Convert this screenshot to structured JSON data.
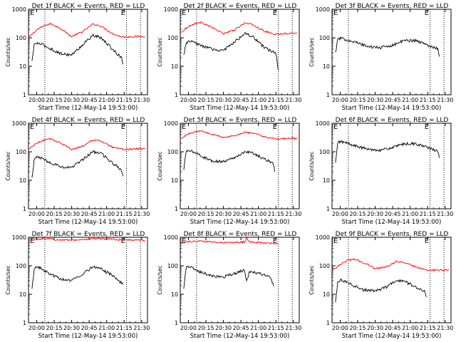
{
  "figure": {
    "time_ticks": [
      "20:00",
      "20:15",
      "20:30",
      "20:45",
      "21:00",
      "21:15",
      "21:30"
    ],
    "y_ticks": [
      "1",
      "10",
      "100",
      "1000"
    ]
  },
  "chart_data": [
    {
      "type": "line",
      "title": "Det 1f BLACK = Events, RED = LLD",
      "xlabel": "Start Time (12-May-14 19:53:00)",
      "ylabel": "Counts/sec",
      "xlim": [
        "19:53",
        "21:35"
      ],
      "ylim": [
        1,
        1000
      ],
      "yscale": "log",
      "markers": {
        "left_label": "E",
        "right_label": "E",
        "dotted_lines": [
          "20:07",
          "21:17",
          "21:29"
        ]
      },
      "series": [
        {
          "color": "#ff0000",
          "x": [
            "19:53",
            "20:00",
            "20:07",
            "20:12",
            "20:20",
            "20:30",
            "20:40",
            "20:48",
            "20:55",
            "21:05",
            "21:12",
            "21:16",
            "21:22",
            "21:33"
          ],
          "values": [
            100,
            190,
            270,
            310,
            220,
            110,
            170,
            300,
            260,
            140,
            110,
            105,
            110,
            112
          ]
        },
        {
          "color": "#000000",
          "x": [
            "19:56",
            "19:58",
            "20:00",
            "20:04",
            "20:10",
            "20:20",
            "20:30",
            "20:40",
            "20:48",
            "20:55",
            "21:05",
            "21:10",
            "21:13",
            "21:14"
          ],
          "values": [
            15,
            60,
            65,
            60,
            45,
            28,
            25,
            60,
            120,
            100,
            40,
            25,
            20,
            12
          ]
        }
      ]
    },
    {
      "type": "line",
      "title": "Det 2f BLACK = Events, RED = LLD",
      "xlabel": "Start Time (12-May-14 19:53:00)",
      "ylabel": "Counts/sec",
      "xlim": [
        "19:53",
        "21:35"
      ],
      "ylim": [
        1,
        1000
      ],
      "yscale": "log",
      "markers": {
        "left_label": "E",
        "right_label": "E",
        "dotted_lines": [
          "20:07",
          "21:17",
          "21:29"
        ]
      },
      "series": [
        {
          "color": "#ff0000",
          "x": [
            "19:53",
            "20:00",
            "20:07",
            "20:12",
            "20:20",
            "20:30",
            "20:40",
            "20:48",
            "20:55",
            "21:05",
            "21:12",
            "21:16",
            "21:22",
            "21:33"
          ],
          "values": [
            150,
            250,
            330,
            340,
            230,
            140,
            190,
            330,
            290,
            170,
            140,
            130,
            140,
            150
          ]
        },
        {
          "color": "#000000",
          "x": [
            "19:56",
            "19:58",
            "20:00",
            "20:04",
            "20:10",
            "20:20",
            "20:30",
            "20:40",
            "20:48",
            "20:55",
            "21:05",
            "21:10",
            "21:15",
            "21:17"
          ],
          "values": [
            25,
            60,
            75,
            70,
            55,
            40,
            35,
            75,
            140,
            110,
            45,
            35,
            30,
            8
          ]
        }
      ]
    },
    {
      "type": "line",
      "title": "Det 3f BLACK = Events, RED = LLD",
      "xlabel": "Start Time (12-May-14 19:53:00)",
      "ylabel": "Counts/sec",
      "xlim": [
        "19:53",
        "21:35"
      ],
      "ylim": [
        1,
        1000
      ],
      "yscale": "log",
      "markers": {
        "left_label": "E",
        "right_label": "E",
        "dotted_lines": [
          "20:07",
          "21:17",
          "21:29"
        ]
      },
      "series": [
        {
          "color": "#000000",
          "x": [
            "19:56",
            "19:58",
            "20:00",
            "20:06",
            "20:15",
            "20:25",
            "20:35",
            "20:45",
            "20:55",
            "21:05",
            "21:15",
            "21:22",
            "21:24",
            "21:25"
          ],
          "values": [
            30,
            90,
            95,
            85,
            65,
            48,
            45,
            55,
            80,
            80,
            55,
            45,
            40,
            22
          ]
        }
      ]
    },
    {
      "type": "line",
      "title": "Det 4f BLACK = Events, RED = LLD",
      "xlabel": "Start Time (12-May-14 19:53:00)",
      "ylabel": "Counts/sec",
      "xlim": [
        "19:53",
        "21:35"
      ],
      "ylim": [
        1,
        1000
      ],
      "yscale": "log",
      "markers": {
        "left_label": "E",
        "right_label": "E",
        "dotted_lines": [
          "20:07",
          "21:17",
          "21:29"
        ]
      },
      "series": [
        {
          "color": "#ff0000",
          "x": [
            "19:53",
            "20:00",
            "20:07",
            "20:12",
            "20:20",
            "20:30",
            "20:40",
            "20:48",
            "20:55",
            "21:05",
            "21:12",
            "21:16",
            "21:22",
            "21:33"
          ],
          "values": [
            120,
            200,
            260,
            280,
            210,
            120,
            160,
            260,
            240,
            140,
            125,
            120,
            125,
            128
          ]
        },
        {
          "color": "#000000",
          "x": [
            "19:56",
            "19:58",
            "20:00",
            "20:04",
            "20:10",
            "20:20",
            "20:30",
            "20:40",
            "20:48",
            "20:55",
            "21:05",
            "21:10",
            "21:13",
            "21:14"
          ],
          "values": [
            12,
            55,
            65,
            60,
            45,
            30,
            28,
            55,
            100,
            90,
            40,
            28,
            22,
            14
          ]
        }
      ]
    },
    {
      "type": "line",
      "title": "Det 5f BLACK = Events, RED = LLD",
      "xlabel": "Start Time (12-May-14 19:53:00)",
      "ylabel": "Counts/sec",
      "xlim": [
        "19:53",
        "21:35"
      ],
      "ylim": [
        1,
        1000
      ],
      "yscale": "log",
      "markers": {
        "left_label": "E",
        "right_label": "E",
        "dotted_lines": [
          "20:07",
          "21:17",
          "21:29"
        ]
      },
      "series": [
        {
          "color": "#ff0000",
          "x": [
            "19:53",
            "20:00",
            "20:07",
            "20:12",
            "20:20",
            "20:30",
            "20:40",
            "20:48",
            "20:55",
            "21:05",
            "21:12",
            "21:16",
            "21:22",
            "21:33"
          ],
          "values": [
            300,
            420,
            520,
            540,
            420,
            320,
            360,
            480,
            460,
            330,
            290,
            285,
            290,
            295
          ]
        },
        {
          "color": "#000000",
          "x": [
            "19:56",
            "19:58",
            "20:00",
            "20:04",
            "20:10",
            "20:20",
            "20:30",
            "20:40",
            "20:48",
            "20:55",
            "21:05",
            "21:10",
            "21:13",
            "21:14"
          ],
          "values": [
            22,
            100,
            110,
            100,
            75,
            48,
            45,
            65,
            100,
            90,
            55,
            45,
            38,
            20
          ]
        }
      ]
    },
    {
      "type": "line",
      "title": "Det 6f BLACK = Events, RED = LLD",
      "xlabel": "Start Time (12-May-14 19:53:00)",
      "ylabel": "Counts/sec",
      "xlim": [
        "19:53",
        "21:35"
      ],
      "ylim": [
        1,
        1000
      ],
      "yscale": "log",
      "markers": {
        "left_label": "E",
        "right_label": "E",
        "dotted_lines": [
          "20:07",
          "21:17",
          "21:29"
        ]
      },
      "series": [
        {
          "color": "#000000",
          "x": [
            "19:56",
            "19:58",
            "20:00",
            "20:06",
            "20:15",
            "20:25",
            "20:35",
            "20:45",
            "20:55",
            "21:05",
            "21:15",
            "21:22",
            "21:24",
            "21:25"
          ],
          "values": [
            40,
            210,
            230,
            200,
            150,
            120,
            115,
            140,
            190,
            190,
            140,
            110,
            100,
            60
          ]
        }
      ]
    },
    {
      "type": "line",
      "title": "Det 7f BLACK = Events, RED = LLD",
      "xlabel": "Start Time (12-May-14 19:53:00)",
      "ylabel": "Counts/sec",
      "xlim": [
        "19:53",
        "21:35"
      ],
      "ylim": [
        1,
        1000
      ],
      "yscale": "log",
      "markers": {
        "left_label": "E",
        "right_label": "E",
        "dotted_lines": [
          "20:07",
          "21:17",
          "21:29"
        ]
      },
      "series": [
        {
          "color": "#ff0000",
          "x": [
            "19:53",
            "20:00",
            "20:07",
            "20:12",
            "20:20",
            "20:30",
            "20:40",
            "20:48",
            "20:55",
            "21:05",
            "21:12",
            "21:16",
            "21:22",
            "21:33"
          ],
          "values": [
            800,
            850,
            900,
            850,
            820,
            800,
            820,
            900,
            880,
            850,
            820,
            820,
            800,
            780
          ]
        },
        {
          "color": "#000000",
          "x": [
            "19:56",
            "19:58",
            "20:00",
            "20:04",
            "20:10",
            "20:20",
            "20:30",
            "20:40",
            "20:48",
            "20:55",
            "21:05",
            "21:10",
            "21:13",
            "21:14"
          ],
          "values": [
            15,
            80,
            90,
            80,
            55,
            35,
            30,
            55,
            90,
            80,
            45,
            30,
            25,
            22
          ]
        }
      ]
    },
    {
      "type": "line",
      "title": "Det 8f BLACK = Events, RED = LLD",
      "xlabel": "Start Time (12-May-14 19:53:00)",
      "ylabel": "Counts/sec",
      "xlim": [
        "19:53",
        "21:35"
      ],
      "ylim": [
        1,
        1000
      ],
      "yscale": "log",
      "markers": {
        "left_label": "E",
        "right_label": "E",
        "dotted_lines": [
          "20:07",
          "21:17",
          "21:29"
        ]
      },
      "series": [
        {
          "color": "#ff0000",
          "x": [
            "19:53",
            "20:00",
            "20:10",
            "20:20",
            "20:30",
            "20:40",
            "20:48",
            "20:50",
            "20:52",
            "21:00",
            "21:10",
            "21:17"
          ],
          "values": [
            650,
            700,
            720,
            680,
            650,
            660,
            680,
            950,
            700,
            660,
            620,
            600
          ]
        },
        {
          "color": "#000000",
          "x": [
            "19:56",
            "19:58",
            "20:00",
            "20:04",
            "20:10",
            "20:20",
            "20:30",
            "20:40",
            "20:48",
            "20:50",
            "20:52",
            "21:00",
            "21:10",
            "21:13"
          ],
          "values": [
            15,
            85,
            95,
            85,
            60,
            45,
            40,
            55,
            70,
            28,
            60,
            55,
            40,
            20
          ]
        }
      ]
    },
    {
      "type": "line",
      "title": "Det 9f BLACK = Events, RED = LLD",
      "xlabel": "Start Time (12-May-14 19:53:00)",
      "ylabel": "Counts/sec",
      "xlim": [
        "19:53",
        "21:35"
      ],
      "ylim": [
        1,
        1000
      ],
      "yscale": "log",
      "markers": {
        "left_label": "E",
        "right_label": "E",
        "dotted_lines": [
          "20:07",
          "21:17",
          "21:29"
        ]
      },
      "series": [
        {
          "color": "#ff0000",
          "x": [
            "19:53",
            "20:00",
            "20:07",
            "20:12",
            "20:20",
            "20:30",
            "20:40",
            "20:48",
            "20:55",
            "21:05",
            "21:12",
            "21:16",
            "21:22",
            "21:33"
          ],
          "values": [
            70,
            110,
            160,
            170,
            130,
            80,
            90,
            140,
            130,
            90,
            75,
            70,
            70,
            72
          ]
        },
        {
          "color": "#000000",
          "x": [
            "19:56",
            "19:58",
            "20:00",
            "20:04",
            "20:10",
            "20:20",
            "20:30",
            "20:40",
            "20:48",
            "20:55",
            "21:05",
            "21:10",
            "21:13",
            "21:14"
          ],
          "values": [
            5,
            28,
            32,
            28,
            22,
            14,
            13,
            18,
            30,
            28,
            18,
            14,
            12,
            8
          ]
        }
      ]
    }
  ]
}
